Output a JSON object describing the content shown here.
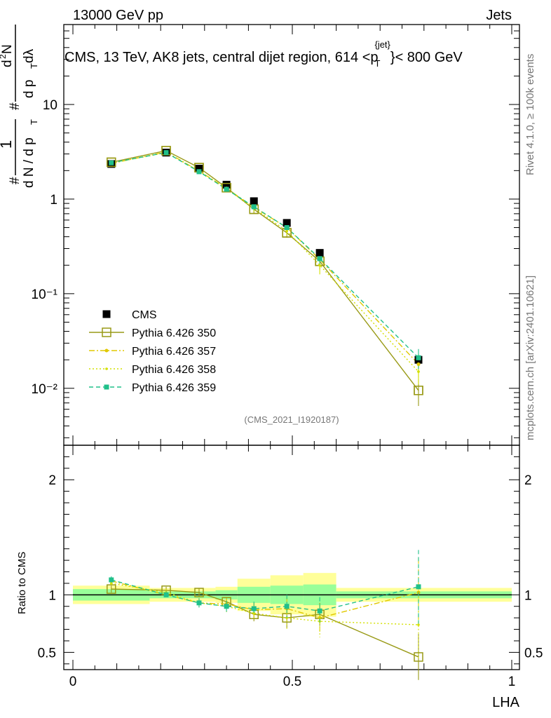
{
  "header": {
    "left": "13000 GeV pp",
    "right": "Jets"
  },
  "watermark": "(CMS_2021_I1920187)",
  "side_right_top": "Rivet 4.1.0, ≥ 100k events",
  "side_right_bottom": "mcplots.cern.ch [arXiv:2401.10621]",
  "main_title": "CMS, 13 TeV, AK8 jets, central dijet region, 614 <",
  "main_title_p": "p",
  "main_title_sup": "{jet}",
  "main_title_sub": "T",
  "main_title_tail": "}< 800 GeV",
  "ylabel_main": {
    "one": "1",
    "hash1": "#",
    "den1": "d N / d p",
    "sub1": "T",
    "hash2": "#",
    "num": "d",
    "num_sup": "2",
    "num_tail": "N",
    "den2": "d p",
    "sub2": "T",
    "den2_tail": " dλ"
  },
  "ylabel_ratio": "Ratio to CMS",
  "xlabel": "LHA",
  "chart_data": {
    "type": "line",
    "x": [
      0.0875,
      0.2125,
      0.2875,
      0.35,
      0.4125,
      0.4875,
      0.5625,
      0.7875
    ],
    "x_ticks": [
      "0",
      "0.5",
      "1"
    ],
    "main_yticks": [
      "10⁻²",
      "10⁻¹",
      "1",
      "10"
    ],
    "ratio_yticks": [
      "0.5",
      "1",
      "2"
    ],
    "xlim": [
      0,
      1
    ],
    "main_ylim": [
      0.0025,
      70
    ],
    "ratio_ylim": [
      0.35,
      2.3
    ],
    "data_band": {
      "edges": [
        0,
        0.175,
        0.25,
        0.325,
        0.375,
        0.45,
        0.525,
        0.6,
        1.0
      ],
      "inner": [
        0.05,
        0.03,
        0.03,
        0.04,
        0.07,
        0.08,
        0.09,
        0.03
      ],
      "outer": [
        0.08,
        0.06,
        0.06,
        0.07,
        0.14,
        0.17,
        0.19,
        0.06
      ]
    },
    "series": [
      {
        "name": "CMS",
        "values": [
          2.35,
          3.1,
          2.1,
          1.42,
          0.95,
          0.56,
          0.27,
          0.02
        ],
        "color": "#000000",
        "style": "data"
      },
      {
        "name": "Pythia 6.426 350",
        "values": [
          2.45,
          3.25,
          2.15,
          1.32,
          0.78,
          0.44,
          0.22,
          0.0095
        ],
        "err": [
          0.05,
          0.08,
          0.08,
          0.05,
          0.07,
          0.05,
          0.04,
          0.003
        ],
        "ratio": [
          1.05,
          1.04,
          1.02,
          0.94,
          0.83,
          0.8,
          0.83,
          0.46
        ],
        "ratio_err": [
          0.03,
          0.03,
          0.04,
          0.04,
          0.06,
          0.09,
          0.1,
          0.2
        ],
        "color": "#999a16",
        "style": "solid",
        "marker": "open-square"
      },
      {
        "name": "Pythia 6.426 357",
        "values": [
          2.38,
          3.15,
          1.98,
          1.3,
          0.82,
          0.5,
          0.23,
          0.018
        ],
        "err": [
          0.05,
          0.08,
          0.08,
          0.05,
          0.07,
          0.05,
          0.04,
          0.005
        ],
        "ratio": [
          1.12,
          1.0,
          0.93,
          0.92,
          0.87,
          0.88,
          0.8,
          1.02
        ],
        "ratio_err": [
          0.03,
          0.03,
          0.04,
          0.05,
          0.06,
          0.1,
          0.12,
          0.3
        ],
        "color": "#e0c800",
        "style": "dashdot",
        "marker": "small-star"
      },
      {
        "name": "Pythia 6.426 358",
        "values": [
          2.4,
          3.1,
          1.98,
          1.28,
          0.8,
          0.46,
          0.2,
          0.015
        ],
        "err": [
          0.05,
          0.08,
          0.08,
          0.05,
          0.07,
          0.05,
          0.04,
          0.004
        ],
        "ratio": [
          1.1,
          1.02,
          0.93,
          0.9,
          0.84,
          0.8,
          0.77,
          0.74
        ],
        "ratio_err": [
          0.03,
          0.03,
          0.04,
          0.05,
          0.06,
          0.1,
          0.14,
          0.3
        ],
        "color": "#d4e000",
        "style": "dotted",
        "marker": "dot"
      },
      {
        "name": "Pythia 6.426 359",
        "values": [
          2.42,
          3.1,
          1.95,
          1.27,
          0.83,
          0.5,
          0.235,
          0.021
        ],
        "err": [
          0.05,
          0.08,
          0.08,
          0.05,
          0.07,
          0.05,
          0.04,
          0.005
        ],
        "ratio": [
          1.13,
          1.0,
          0.93,
          0.9,
          0.88,
          0.9,
          0.86,
          1.07
        ],
        "ratio_err": [
          0.03,
          0.03,
          0.04,
          0.05,
          0.06,
          0.1,
          0.12,
          0.32
        ],
        "color": "#20c08a",
        "style": "dashed",
        "marker": "filled-square"
      }
    ]
  }
}
